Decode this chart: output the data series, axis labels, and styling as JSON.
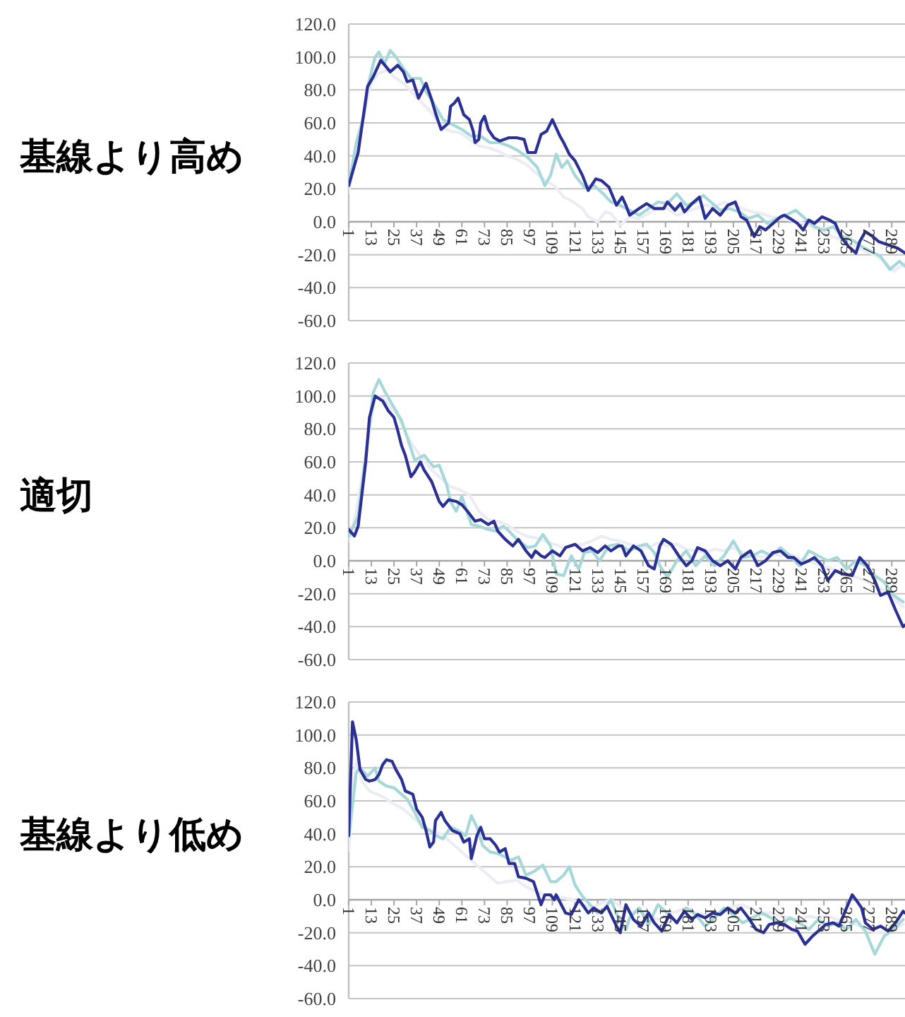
{
  "chart_data": [
    {
      "type": "line",
      "title": "基線より高め",
      "xlim": [
        1,
        296
      ],
      "xticks": [
        1,
        13,
        25,
        37,
        49,
        61,
        73,
        85,
        97,
        109,
        121,
        133,
        145,
        157,
        169,
        181,
        193,
        205,
        217,
        229,
        241,
        253,
        265,
        277,
        289
      ],
      "ylim": [
        -60,
        120
      ],
      "yticks": [
        {
          "value": -60,
          "label": "-60.0"
        },
        {
          "value": -40,
          "label": "-40.0"
        },
        {
          "value": -20,
          "label": "-20.0"
        },
        {
          "value": 0,
          "label": "0.0"
        },
        {
          "value": 20,
          "label": "20.0"
        },
        {
          "value": 40,
          "label": "40.0"
        },
        {
          "value": 60,
          "label": "60.0"
        },
        {
          "value": 80,
          "label": "80.0"
        },
        {
          "value": 100,
          "label": "100.0"
        },
        {
          "value": 120,
          "label": "120.0"
        }
      ],
      "grid": "y",
      "series": [
        {
          "color": "#ececf4",
          "x": [
            1,
            5,
            10,
            13,
            17,
            21,
            25,
            30,
            35,
            40,
            45,
            50,
            55,
            60,
            65,
            70,
            75,
            80,
            85,
            90,
            95,
            100,
            105,
            110,
            115,
            120,
            125,
            128,
            133,
            137,
            140,
            145,
            150,
            155,
            160,
            165,
            170,
            175,
            180,
            185,
            190,
            195,
            200,
            205,
            210,
            215,
            220,
            225,
            230,
            235,
            240,
            245,
            250,
            255,
            260,
            265,
            270,
            275,
            280,
            285,
            290,
            296
          ],
          "values": [
            18,
            45,
            70,
            85,
            90,
            92,
            88,
            84,
            78,
            72,
            66,
            58,
            55,
            54,
            50,
            46,
            45,
            43,
            40,
            38,
            35,
            30,
            25,
            22,
            15,
            12,
            8,
            3,
            0,
            6,
            5,
            -2,
            3,
            2,
            5,
            9,
            8,
            4,
            6,
            8,
            10,
            9,
            12,
            10,
            8,
            6,
            5,
            3,
            2,
            1,
            0,
            -2,
            -5,
            -8,
            -10,
            -12,
            -15,
            -18,
            -20,
            -24,
            -30,
            -25
          ]
        },
        {
          "color": "#a6d8da",
          "x": [
            1,
            5,
            9,
            11,
            15,
            17,
            20,
            23,
            26,
            30,
            34,
            39,
            42,
            47,
            51,
            56,
            61,
            66,
            71,
            76,
            81,
            86,
            91,
            96,
            101,
            105,
            108,
            111,
            114,
            117,
            121,
            126,
            131,
            136,
            140,
            143,
            150,
            155,
            160,
            165,
            170,
            175,
            180,
            185,
            189,
            193,
            198,
            203,
            208,
            213,
            218,
            223,
            228,
            233,
            238,
            243,
            248,
            253,
            258,
            263,
            268,
            273,
            278,
            283,
            288,
            293,
            296
          ],
          "values": [
            22,
            48,
            64,
            82,
            100,
            103,
            96,
            104,
            100,
            93,
            87,
            87,
            79,
            70,
            62,
            59,
            56,
            52,
            52,
            48,
            48,
            46,
            43,
            39,
            33,
            22,
            28,
            41,
            33,
            37,
            28,
            21,
            22,
            17,
            12,
            11,
            7,
            4,
            8,
            12,
            11,
            17,
            10,
            12,
            16,
            12,
            7,
            8,
            6,
            2,
            4,
            -1,
            2,
            4,
            7,
            2,
            -3,
            -5,
            -3,
            -9,
            -11,
            -15,
            -18,
            -21,
            -29,
            -24,
            -27
          ]
        },
        {
          "color": "#2b3094",
          "x": [
            1,
            6,
            11,
            14,
            18,
            23,
            27,
            30,
            32,
            35,
            38,
            42,
            45,
            47,
            50,
            54,
            55,
            57,
            59,
            62,
            65,
            67,
            68,
            70,
            71,
            73,
            75,
            78,
            81,
            86,
            90,
            94,
            96,
            100,
            103,
            106,
            109,
            113,
            115,
            118,
            121,
            125,
            128,
            132,
            135,
            139,
            143,
            146,
            148,
            150,
            155,
            159,
            163,
            168,
            170,
            174,
            177,
            179,
            183,
            187,
            190,
            194,
            198,
            202,
            206,
            209,
            212,
            216,
            219,
            222,
            226,
            230,
            232,
            235,
            239,
            242,
            245,
            248,
            252,
            256,
            259,
            262,
            266,
            270,
            272,
            275,
            279,
            282,
            287,
            292,
            296
          ],
          "values": [
            22,
            42,
            82,
            88,
            98,
            91,
            95,
            91,
            85,
            86,
            75,
            84,
            74,
            66,
            56,
            60,
            70,
            72,
            75,
            65,
            62,
            55,
            48,
            50,
            60,
            64,
            56,
            51,
            49,
            51,
            51,
            50,
            42,
            42,
            53,
            55,
            62,
            52,
            48,
            41,
            37,
            28,
            19,
            26,
            25,
            21,
            10,
            15,
            10,
            4,
            8,
            11,
            8,
            8,
            12,
            7,
            11,
            6,
            11,
            15,
            2,
            8,
            4,
            10,
            12,
            3,
            1,
            -9,
            -3,
            -5,
            -1,
            3,
            4,
            2,
            -1,
            -5,
            1,
            -1,
            3,
            1,
            -1,
            -9,
            -15,
            -19,
            -12,
            -6,
            -9,
            -12,
            -14,
            -16,
            -19
          ]
        }
      ]
    },
    {
      "type": "line",
      "title": "適切",
      "xlim": [
        1,
        296
      ],
      "xticks": [
        1,
        13,
        25,
        37,
        49,
        61,
        73,
        85,
        97,
        109,
        121,
        133,
        145,
        157,
        169,
        181,
        193,
        205,
        217,
        229,
        241,
        253,
        265,
        277,
        289
      ],
      "ylim": [
        -60,
        120
      ],
      "yticks": [
        {
          "value": -60,
          "label": "-60.0"
        },
        {
          "value": -40,
          "label": "-40.0"
        },
        {
          "value": -20,
          "label": "-20.0"
        },
        {
          "value": 0,
          "label": "0.0"
        },
        {
          "value": 20,
          "label": "20.0"
        },
        {
          "value": 40,
          "label": "40.0"
        },
        {
          "value": 60,
          "label": "60.0"
        },
        {
          "value": 80,
          "label": "80.0"
        },
        {
          "value": 100,
          "label": "100.0"
        },
        {
          "value": 120,
          "label": "120.0"
        }
      ],
      "grid": "y",
      "series": [
        {
          "color": "#ececf4",
          "x": [
            1,
            5,
            10,
            15,
            20,
            27,
            31,
            35,
            40,
            45,
            50,
            55,
            60,
            65,
            70,
            75,
            80,
            85,
            90,
            95,
            100,
            105,
            110,
            115,
            120,
            125,
            130,
            135,
            140,
            145,
            150,
            155,
            160,
            165,
            170,
            175,
            180,
            185,
            190,
            195,
            200,
            205,
            210,
            215,
            220,
            225,
            230,
            235,
            240,
            245,
            250,
            255,
            260,
            265,
            270,
            275,
            280,
            285,
            290,
            295
          ],
          "values": [
            12,
            30,
            65,
            100,
            98,
            88,
            78,
            70,
            62,
            55,
            50,
            45,
            43,
            40,
            30,
            25,
            24,
            22,
            18,
            15,
            14,
            12,
            10,
            8,
            9,
            10,
            12,
            15,
            13,
            12,
            10,
            8,
            8,
            11,
            9,
            10,
            7,
            6,
            5,
            7,
            6,
            8,
            5,
            4,
            2,
            5,
            3,
            4,
            1,
            0,
            -2,
            -4,
            -6,
            -8,
            -10,
            -12,
            -15,
            -18,
            -23,
            -28
          ]
        },
        {
          "color": "#a6d8da",
          "x": [
            1,
            6,
            10,
            14,
            17,
            20,
            25,
            29,
            32,
            36,
            41,
            46,
            49,
            53,
            55,
            58,
            61,
            66,
            70,
            75,
            79,
            83,
            86,
            91,
            96,
            100,
            104,
            108,
            111,
            115,
            119,
            123,
            126,
            130,
            134,
            139,
            144,
            150,
            155,
            159,
            163,
            166,
            170,
            175,
            180,
            185,
            190,
            195,
            200,
            205,
            210,
            215,
            220,
            225,
            230,
            235,
            240,
            245,
            250,
            255,
            260,
            265,
            270,
            275,
            280,
            285,
            290,
            295
          ],
          "values": [
            15,
            27,
            63,
            102,
            110,
            103,
            93,
            85,
            75,
            61,
            64,
            57,
            58,
            46,
            36,
            30,
            39,
            22,
            21,
            19,
            18,
            21,
            18,
            12,
            8,
            9,
            16,
            9,
            -8,
            -9,
            3,
            -5,
            5,
            6,
            0,
            9,
            10,
            6,
            9,
            10,
            5,
            -3,
            -10,
            0,
            6,
            -3,
            3,
            -3,
            3,
            12,
            2,
            3,
            6,
            3,
            8,
            3,
            -3,
            6,
            3,
            0,
            2,
            -5,
            0,
            -3,
            -9,
            -13,
            -21,
            -25
          ]
        },
        {
          "color": "#2b3094",
          "x": [
            1,
            4,
            6,
            10,
            12,
            15,
            19,
            22,
            25,
            27,
            29,
            31,
            34,
            36,
            39,
            41,
            45,
            49,
            51,
            54,
            58,
            61,
            64,
            68,
            71,
            75,
            78,
            80,
            84,
            88,
            91,
            95,
            98,
            100,
            103,
            105,
            109,
            113,
            116,
            121,
            125,
            129,
            133,
            137,
            140,
            144,
            146,
            148,
            152,
            156,
            160,
            163,
            166,
            168,
            172,
            176,
            180,
            183,
            186,
            190,
            194,
            198,
            202,
            206,
            209,
            214,
            218,
            222,
            226,
            230,
            234,
            237,
            241,
            245,
            248,
            252,
            255,
            259,
            263,
            268,
            272,
            276,
            280,
            283,
            287,
            291,
            295,
            296
          ],
          "values": [
            19,
            15,
            21,
            60,
            87,
            100,
            97,
            91,
            87,
            79,
            70,
            64,
            51,
            54,
            60,
            55,
            48,
            36,
            33,
            37,
            36,
            34,
            30,
            24,
            25,
            22,
            24,
            18,
            13,
            9,
            13,
            6,
            2,
            6,
            3,
            2,
            6,
            3,
            8,
            10,
            6,
            8,
            5,
            9,
            6,
            9,
            9,
            3,
            9,
            6,
            -3,
            -5,
            9,
            13,
            10,
            3,
            -3,
            0,
            8,
            6,
            0,
            -3,
            0,
            -5,
            2,
            6,
            -3,
            0,
            5,
            6,
            2,
            2,
            -2,
            0,
            2,
            -3,
            -12,
            -6,
            -8,
            -9,
            2,
            -3,
            -12,
            -21,
            -19,
            -30,
            -40,
            -39
          ]
        }
      ]
    },
    {
      "type": "line",
      "title": "基線より低め",
      "xlim": [
        1,
        296
      ],
      "xticks": [
        1,
        13,
        25,
        37,
        49,
        61,
        73,
        85,
        97,
        109,
        121,
        133,
        145,
        157,
        169,
        181,
        193,
        205,
        217,
        229,
        241,
        253,
        265,
        277,
        289
      ],
      "ylim": [
        -60,
        120
      ],
      "yticks": [
        {
          "value": -60,
          "label": "-60.0"
        },
        {
          "value": -40,
          "label": "-40.0"
        },
        {
          "value": -20,
          "label": "-20.0"
        },
        {
          "value": 0,
          "label": "0.0"
        },
        {
          "value": 20,
          "label": "20.0"
        },
        {
          "value": 40,
          "label": "40.0"
        },
        {
          "value": 60,
          "label": "60.0"
        },
        {
          "value": 80,
          "label": "80.0"
        },
        {
          "value": 100,
          "label": "100.0"
        },
        {
          "value": 120,
          "label": "120.0"
        }
      ],
      "grid": "y",
      "series": [
        {
          "color": "#ececf4",
          "x": [
            1,
            5,
            8,
            12,
            16,
            20,
            25,
            30,
            35,
            40,
            45,
            50,
            55,
            60,
            65,
            70,
            75,
            80,
            85,
            90,
            95,
            100,
            105,
            110,
            115,
            120,
            125,
            130,
            135,
            140,
            145,
            150,
            155,
            160,
            165,
            170,
            175,
            180,
            185,
            190,
            195,
            200,
            205,
            210,
            215,
            220,
            225,
            230,
            235,
            240,
            245,
            250,
            255,
            260,
            265,
            270,
            275,
            280,
            285,
            290,
            295
          ],
          "values": [
            30,
            85,
            72,
            66,
            64,
            62,
            58,
            55,
            50,
            45,
            42,
            40,
            35,
            30,
            25,
            20,
            15,
            10,
            11,
            12,
            8,
            5,
            3,
            2,
            1,
            0,
            -3,
            -5,
            -2,
            0,
            -4,
            -8,
            -6,
            -10,
            -12,
            -9,
            -7,
            -5,
            -8,
            -9,
            -10,
            -6,
            -4,
            -3,
            -6,
            -8,
            -8,
            -10,
            -11,
            -12,
            -10,
            -11,
            -10,
            -12,
            -13,
            -15,
            -17,
            -20,
            -20,
            -18,
            -15
          ]
        },
        {
          "color": "#a6d8da",
          "x": [
            1,
            5,
            7,
            11,
            15,
            17,
            21,
            25,
            29,
            32,
            36,
            40,
            44,
            47,
            51,
            55,
            59,
            63,
            66,
            69,
            72,
            76,
            80,
            84,
            87,
            91,
            95,
            99,
            104,
            108,
            111,
            115,
            118,
            121,
            125,
            129,
            133,
            137,
            140,
            144,
            148,
            150,
            155,
            160,
            165,
            170,
            175,
            180,
            185,
            190,
            195,
            200,
            205,
            210,
            215,
            220,
            225,
            230,
            235,
            240,
            245,
            250,
            255,
            260,
            265,
            270,
            275,
            280,
            285,
            290,
            295
          ],
          "values": [
            38,
            77,
            80,
            75,
            80,
            72,
            69,
            68,
            64,
            61,
            53,
            44,
            42,
            39,
            37,
            44,
            42,
            39,
            51,
            44,
            33,
            29,
            28,
            26,
            24,
            26,
            15,
            17,
            21,
            11,
            11,
            15,
            20,
            9,
            2,
            -3,
            -8,
            -5,
            0,
            -11,
            -18,
            -11,
            -5,
            -15,
            -3,
            -8,
            -14,
            -5,
            -9,
            -16,
            -11,
            -5,
            -9,
            -14,
            -11,
            -8,
            -11,
            -15,
            -11,
            -14,
            -18,
            -12,
            -16,
            -14,
            -18,
            -12,
            -19,
            -33,
            -22,
            -18,
            -12
          ]
        },
        {
          "color": "#2b3094",
          "x": [
            1,
            3,
            5,
            7,
            10,
            12,
            15,
            17,
            19,
            21,
            24,
            26,
            29,
            31,
            35,
            37,
            40,
            42,
            44,
            46,
            47,
            50,
            52,
            56,
            60,
            62,
            65,
            66,
            69,
            71,
            73,
            76,
            79,
            81,
            84,
            86,
            89,
            91,
            95,
            99,
            103,
            105,
            108,
            110,
            111,
            116,
            119,
            123,
            125,
            128,
            131,
            135,
            138,
            143,
            145,
            148,
            152,
            156,
            160,
            163,
            167,
            171,
            175,
            179,
            183,
            186,
            190,
            194,
            198,
            202,
            206,
            209,
            213,
            217,
            221,
            224,
            228,
            232,
            236,
            239,
            243,
            247,
            251,
            254,
            258,
            261,
            265,
            268,
            270,
            273,
            275,
            279,
            283,
            287,
            291,
            295,
            296
          ],
          "values": [
            39,
            108,
            97,
            79,
            73,
            72,
            73,
            76,
            82,
            85,
            84,
            79,
            73,
            66,
            64,
            55,
            50,
            42,
            32,
            35,
            48,
            53,
            48,
            42,
            40,
            35,
            37,
            25,
            39,
            44,
            37,
            37,
            33,
            29,
            31,
            22,
            22,
            14,
            13,
            11,
            -3,
            3,
            3,
            0,
            3,
            -8,
            -9,
            0,
            -3,
            -8,
            -5,
            -8,
            -4,
            -16,
            -20,
            -3,
            -12,
            -16,
            -8,
            -14,
            -19,
            -9,
            -14,
            -7,
            -12,
            -9,
            -11,
            -8,
            -9,
            -5,
            -8,
            -5,
            -11,
            -18,
            -20,
            -15,
            -14,
            -15,
            -18,
            -19,
            -27,
            -22,
            -18,
            -15,
            -14,
            -16,
            -5,
            3,
            0,
            -5,
            -14,
            -18,
            -16,
            -19,
            -14,
            -7,
            -8
          ]
        }
      ]
    }
  ]
}
